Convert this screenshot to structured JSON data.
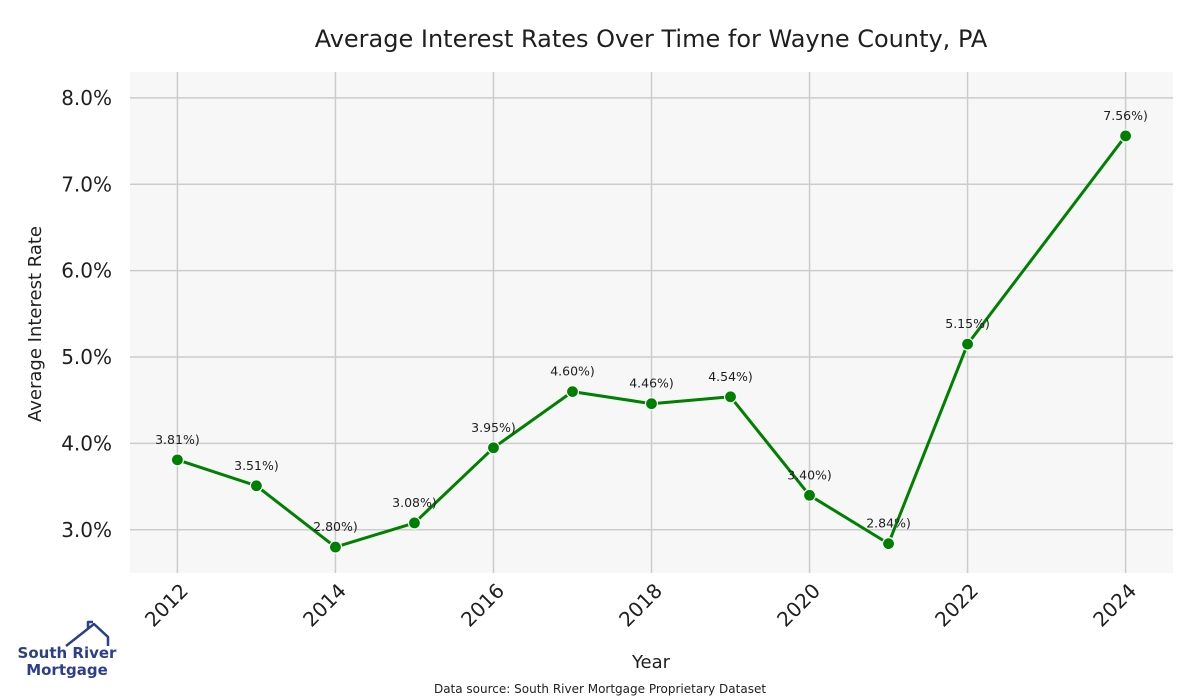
{
  "chart_data": {
    "type": "line",
    "title": "Average Interest Rates Over Time for Wayne County, PA",
    "xlabel": "Year",
    "ylabel": "Average Interest Rate",
    "x": [
      2012,
      2013,
      2014,
      2015,
      2016,
      2017,
      2018,
      2019,
      2020,
      2021,
      2022,
      2024
    ],
    "values": [
      3.81,
      3.51,
      2.8,
      3.08,
      3.95,
      4.6,
      4.46,
      4.54,
      3.4,
      2.84,
      5.15,
      7.56
    ],
    "point_labels": [
      "3.81%)",
      "3.51%)",
      "2.80%)",
      "3.08%)",
      "3.95%)",
      "4.60%)",
      "4.46%)",
      "4.54%)",
      "3.40%)",
      "2.84%)",
      "5.15%)",
      "7.56%)"
    ],
    "xticks": [
      "2012",
      "2014",
      "2016",
      "2018",
      "2020",
      "2022",
      "2024"
    ],
    "yticks": [
      "3.0%",
      "4.0%",
      "5.0%",
      "6.0%",
      "7.0%",
      "8.0%"
    ],
    "ylim": [
      2.5,
      8.3
    ],
    "xlim": [
      2011.4,
      2024.6
    ],
    "grid": true,
    "line_color": "#008000",
    "background_color": "#f7f7f7",
    "grid_color": "#cccccc"
  },
  "source_note": "Data source: South River Mortgage Proprietary Dataset",
  "logo": {
    "line1": "South River",
    "line2": "Mortgage",
    "color": "#2c3f8c"
  }
}
